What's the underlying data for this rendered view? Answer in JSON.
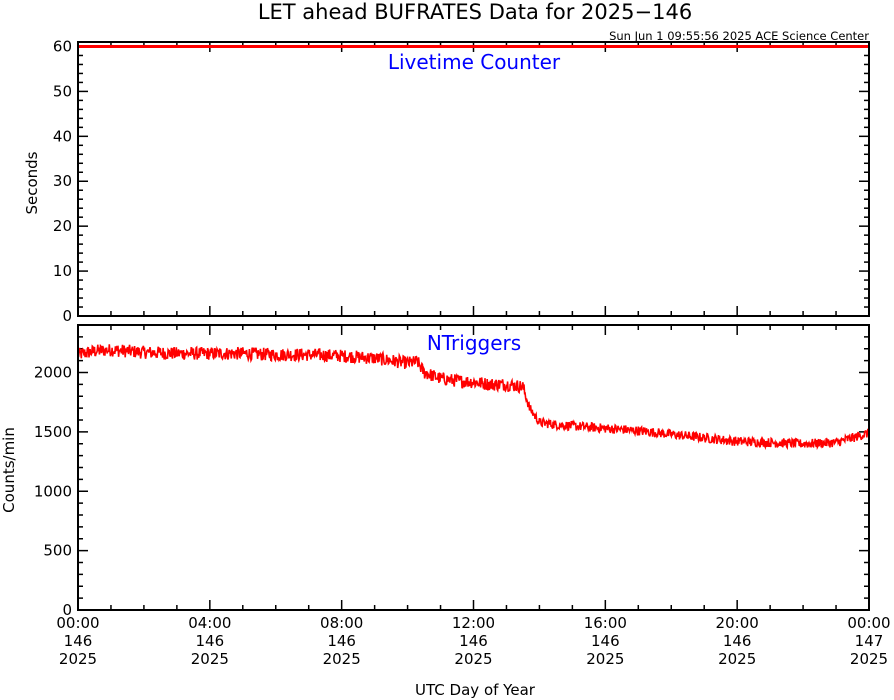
{
  "title": "LET ahead BUFRATES Data for 2025−146",
  "timestamp": "Sun Jun  1 09:55:56 2025 ACE Science Center",
  "xlabel": "UTC Day of Year",
  "colors": {
    "series": "#ff0000",
    "annotation": "#0000ff",
    "axes": "#000000"
  },
  "x_ticks": [
    {
      "time": "00:00",
      "doy": "146",
      "year": "2025"
    },
    {
      "time": "04:00",
      "doy": "146",
      "year": "2025"
    },
    {
      "time": "08:00",
      "doy": "146",
      "year": "2025"
    },
    {
      "time": "12:00",
      "doy": "146",
      "year": "2025"
    },
    {
      "time": "16:00",
      "doy": "146",
      "year": "2025"
    },
    {
      "time": "20:00",
      "doy": "146",
      "year": "2025"
    },
    {
      "time": "00:00",
      "doy": "147",
      "year": "2025"
    }
  ],
  "chart_data": [
    {
      "type": "line",
      "panel_label": "Livetime Counter",
      "ylabel": "Seconds",
      "ylim": [
        0,
        61
      ],
      "xlim_hours": [
        0,
        24
      ],
      "y_ticks": [
        "0",
        "10",
        "20",
        "30",
        "40",
        "50",
        "60"
      ],
      "y_tick_values": [
        0,
        10,
        20,
        30,
        40,
        50,
        60
      ],
      "series": [
        {
          "x_hours": [
            0,
            4,
            8,
            12,
            16,
            20,
            24
          ],
          "values": [
            60,
            60,
            60,
            60,
            60,
            60,
            60
          ]
        }
      ]
    },
    {
      "type": "line",
      "panel_label": "NTriggers",
      "ylabel": "Counts/min",
      "ylim": [
        0,
        2400
      ],
      "xlim_hours": [
        0,
        24
      ],
      "y_ticks": [
        "0",
        "500",
        "1000",
        "1500",
        "2000"
      ],
      "y_tick_values": [
        0,
        500,
        1000,
        1500,
        2000
      ],
      "series": [
        {
          "x_hours": [
            0,
            0.5,
            1,
            1.5,
            2,
            3,
            4,
            5,
            6,
            7,
            8,
            9,
            9.5,
            10,
            10.3,
            10.5,
            11,
            11.5,
            12,
            12.5,
            13,
            13.5,
            13.7,
            14,
            14.5,
            15,
            16,
            17,
            18,
            19,
            20,
            21,
            22,
            23,
            23.5,
            24
          ],
          "values": [
            2150,
            2180,
            2190,
            2180,
            2170,
            2160,
            2160,
            2160,
            2150,
            2150,
            2140,
            2120,
            2100,
            2080,
            2090,
            2000,
            1950,
            1930,
            1920,
            1900,
            1900,
            1880,
            1700,
            1580,
            1560,
            1550,
            1530,
            1510,
            1480,
            1450,
            1420,
            1410,
            1400,
            1410,
            1450,
            1490
          ]
        }
      ]
    }
  ]
}
